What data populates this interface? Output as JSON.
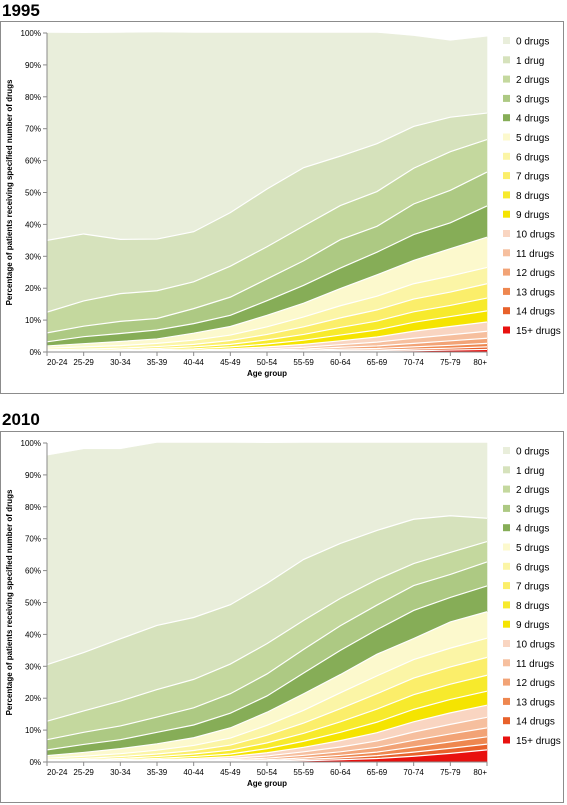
{
  "colors": [
    "#e9eedb",
    "#d6e2bc",
    "#c4d89e",
    "#adc983",
    "#86ad57",
    "#fcf9cd",
    "#fbf5a6",
    "#fbee6a",
    "#f7ea2c",
    "#f5e400",
    "#f9d5c1",
    "#f6bf9e",
    "#f2a376",
    "#ee874f",
    "#e8612b",
    "#e8110f"
  ],
  "chart_data": [
    {
      "type": "area",
      "stacked": true,
      "title": "1995",
      "xlabel": "Age group",
      "ylabel": "Percentage of patients receiving specified number of drugs",
      "ylim": [
        0,
        100
      ],
      "yticks": [
        "0%",
        "10%",
        "20%",
        "30%",
        "40%",
        "50%",
        "60%",
        "70%",
        "80%",
        "90%",
        "100%"
      ],
      "categories": [
        "20-24",
        "25-29",
        "30-34",
        "35-39",
        "40-44",
        "45-49",
        "50-54",
        "55-59",
        "60-64",
        "65-69",
        "70-74",
        "75-79",
        "80+"
      ],
      "grid": false,
      "legend_position": "right",
      "series": [
        {
          "name": "15+ drugs",
          "values": [
            0,
            0,
            0,
            0,
            0,
            0,
            0.1,
            0.1,
            0.2,
            0.3,
            0.4,
            0.6,
            0.8
          ]
        },
        {
          "name": "14 drugs",
          "values": [
            0,
            0,
            0,
            0,
            0,
            0.1,
            0.1,
            0.2,
            0.3,
            0.3,
            0.5,
            0.6,
            0.8
          ]
        },
        {
          "name": "13 drugs",
          "values": [
            0,
            0,
            0,
            0,
            0.1,
            0.1,
            0.2,
            0.2,
            0.4,
            0.5,
            0.7,
            0.9,
            1.1
          ]
        },
        {
          "name": "12 drugs",
          "values": [
            0,
            0,
            0,
            0.1,
            0.1,
            0.2,
            0.2,
            0.4,
            0.6,
            0.8,
            1.1,
            1.4,
            1.6
          ]
        },
        {
          "name": "11 drugs",
          "values": [
            0,
            0,
            0.1,
            0.1,
            0.2,
            0.2,
            0.4,
            0.6,
            0.8,
            1.2,
            1.6,
            1.9,
            2.2
          ]
        },
        {
          "name": "10 drugs",
          "values": [
            0.1,
            0.1,
            0.1,
            0.2,
            0.2,
            0.4,
            0.6,
            0.9,
            1.2,
            1.6,
            2.2,
            2.6,
            2.9
          ]
        },
        {
          "name": "9 drugs",
          "values": [
            0.1,
            0.2,
            0.2,
            0.3,
            0.4,
            0.6,
            0.9,
            1.3,
            1.8,
            2.2,
            2.8,
            3.1,
            3.5
          ]
        },
        {
          "name": "8 drugs",
          "values": [
            0.2,
            0.2,
            0.3,
            0.4,
            0.6,
            0.8,
            1.3,
            1.8,
            2.4,
            2.8,
            3.3,
            3.5,
            4.0
          ]
        },
        {
          "name": "7 drugs",
          "values": [
            0.3,
            0.4,
            0.5,
            0.6,
            0.8,
            1.2,
            1.7,
            2.4,
            3.0,
            3.5,
            4.0,
            4.2,
            4.5
          ]
        },
        {
          "name": "6 drugs",
          "values": [
            0.5,
            0.7,
            0.8,
            1.0,
            1.3,
            1.7,
            2.4,
            3.1,
            3.8,
            4.3,
            4.8,
            5.0,
            5.1
          ]
        },
        {
          "name": "5 drugs",
          "values": [
            0.7,
            1.0,
            1.3,
            1.4,
            2.2,
            2.7,
            3.6,
            4.3,
            5.4,
            6.7,
            7.3,
            8.6,
            9.5
          ]
        },
        {
          "name": "4 drugs",
          "values": [
            1.3,
            2.2,
            2.5,
            2.8,
            3.0,
            3.5,
            4.6,
            5.6,
            6.4,
            7.1,
            8.1,
            8.1,
            9.8
          ]
        },
        {
          "name": "3 drugs",
          "values": [
            2.8,
            3.3,
            3.8,
            3.6,
            4.7,
            5.7,
            6.8,
            7.7,
            8.9,
            8.1,
            9.6,
            10.2,
            10.6
          ]
        },
        {
          "name": "2 drugs",
          "values": [
            6.5,
            7.9,
            8.7,
            8.7,
            8.4,
            9.7,
            10.1,
            10.9,
            10.7,
            10.9,
            11.2,
            12.1,
            10.2
          ]
        },
        {
          "name": "1 drug",
          "values": [
            22.5,
            21.0,
            17.0,
            16.2,
            15.7,
            16.8,
            18.1,
            18.3,
            15.5,
            15.0,
            13.1,
            10.8,
            8.3
          ]
        },
        {
          "name": "0 drugs",
          "values": [
            65.0,
            62.9,
            64.7,
            64.7,
            62.3,
            56.3,
            48.9,
            42.2,
            38.6,
            34.7,
            28.3,
            23.9,
            23.9
          ]
        }
      ]
    },
    {
      "type": "area",
      "stacked": true,
      "title": "2010",
      "xlabel": "Age group",
      "ylabel": "Percentage of patients receiving specified number of drugs",
      "ylim": [
        0,
        100
      ],
      "yticks": [
        "0%",
        "10%",
        "20%",
        "30%",
        "40%",
        "50%",
        "60%",
        "70%",
        "80%",
        "90%",
        "100%"
      ],
      "categories": [
        "20-24",
        "25-29",
        "30-34",
        "35-39",
        "40-44",
        "45-49",
        "50-54",
        "55-59",
        "60-64",
        "65-69",
        "70-74",
        "75-79",
        "80+"
      ],
      "grid": false,
      "legend_position": "right",
      "series": [
        {
          "name": "15+ drugs",
          "values": [
            0,
            0,
            0,
            0,
            0,
            0.1,
            0.2,
            0.4,
            0.7,
            1.1,
            1.8,
            2.7,
            3.8
          ]
        },
        {
          "name": "14 drugs",
          "values": [
            0,
            0,
            0,
            0,
            0.1,
            0.1,
            0.2,
            0.4,
            0.6,
            0.9,
            1.3,
            1.6,
            1.8
          ]
        },
        {
          "name": "13 drugs",
          "values": [
            0,
            0,
            0,
            0.1,
            0.1,
            0.2,
            0.3,
            0.5,
            0.8,
            1.1,
            1.6,
            2.0,
            2.3
          ]
        },
        {
          "name": "12 drugs",
          "values": [
            0,
            0,
            0.1,
            0.1,
            0.2,
            0.3,
            0.5,
            0.8,
            1.1,
            1.5,
            2.1,
            2.5,
            2.8
          ]
        },
        {
          "name": "11 drugs",
          "values": [
            0,
            0.1,
            0.1,
            0.2,
            0.3,
            0.4,
            0.7,
            1.1,
            1.5,
            2.0,
            2.6,
            3.0,
            3.3
          ]
        },
        {
          "name": "10 drugs",
          "values": [
            0.1,
            0.1,
            0.2,
            0.3,
            0.4,
            0.6,
            1.0,
            1.4,
            2.0,
            2.6,
            3.2,
            3.6,
            3.8
          ]
        },
        {
          "name": "9 drugs",
          "values": [
            0.1,
            0.2,
            0.3,
            0.4,
            0.6,
            0.8,
            1.3,
            1.9,
            2.6,
            3.3,
            3.9,
            4.2,
            4.4
          ]
        },
        {
          "name": "8 drugs",
          "values": [
            0.2,
            0.3,
            0.4,
            0.6,
            0.8,
            1.2,
            1.8,
            2.5,
            3.3,
            4.1,
            4.6,
            4.8,
            5.0
          ]
        },
        {
          "name": "7 drugs",
          "values": [
            0.3,
            0.4,
            0.6,
            0.8,
            1.1,
            1.6,
            2.4,
            3.2,
            4.1,
            4.8,
            5.2,
            5.4,
            5.6
          ]
        },
        {
          "name": "6 drugs",
          "values": [
            0.5,
            0.7,
            0.9,
            1.2,
            1.6,
            2.2,
            3.1,
            4.0,
            5.0,
            5.6,
            5.8,
            5.9,
            6.0
          ]
        },
        {
          "name": "5 drugs",
          "values": [
            0.8,
            1.2,
            1.6,
            2.0,
            2.4,
            3.2,
            4.1,
            5.2,
            5.7,
            6.8,
            6.6,
            8.2,
            8.3
          ]
        },
        {
          "name": "4 drugs",
          "values": [
            1.8,
            2.5,
            2.8,
            3.6,
            4.0,
            4.6,
            5.1,
            6.5,
            7.6,
            7.7,
            8.8,
            7.7,
            8.1
          ]
        },
        {
          "name": "3 drugs",
          "values": [
            3.2,
            3.8,
            4.3,
            4.8,
            5.4,
            6.1,
            6.9,
            7.4,
            7.7,
            7.7,
            7.8,
            7.2,
            7.5
          ]
        },
        {
          "name": "2 drugs",
          "values": [
            5.8,
            6.7,
            7.8,
            8.6,
            8.9,
            9.3,
            9.5,
            9.1,
            8.6,
            8.0,
            6.9,
            6.9,
            6.4
          ]
        },
        {
          "name": "1 drug",
          "values": [
            17.7,
            18.3,
            19.5,
            20.1,
            19.4,
            18.6,
            18.9,
            19.1,
            17.2,
            15.4,
            13.9,
            11.5,
            7.3
          ]
        },
        {
          "name": "0 drugs",
          "values": [
            65.5,
            63.7,
            59.4,
            57.2,
            54.7,
            50.7,
            43.9,
            36.5,
            31.5,
            27.4,
            23.9,
            22.8,
            23.6
          ]
        }
      ]
    }
  ]
}
